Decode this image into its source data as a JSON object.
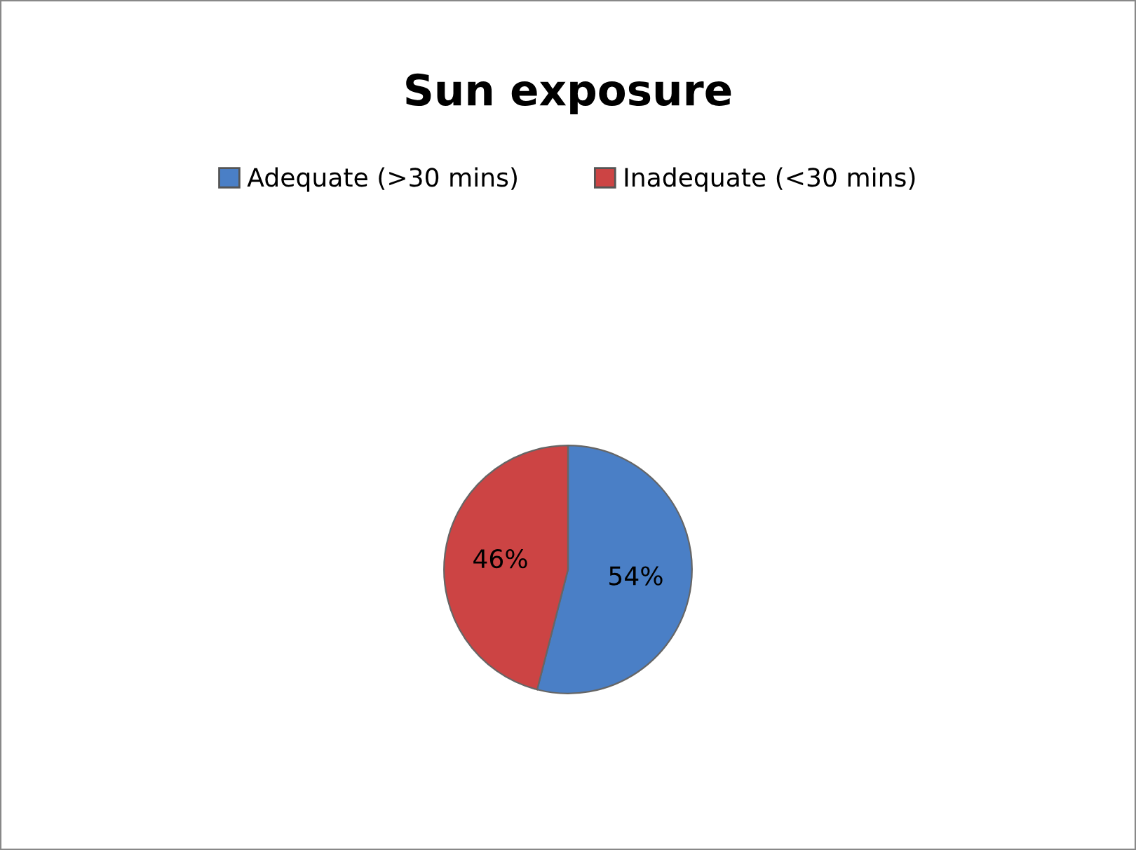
{
  "chart_data": {
    "type": "pie",
    "title": "Sun exposure",
    "categories": [
      "Adequate (>30 mins)",
      "Inadequate (<30 mins)"
    ],
    "values": [
      54,
      46
    ],
    "colors": [
      "#4a7fc6",
      "#cc4444"
    ],
    "value_labels": [
      "54%",
      "46%"
    ],
    "legend": "top"
  }
}
